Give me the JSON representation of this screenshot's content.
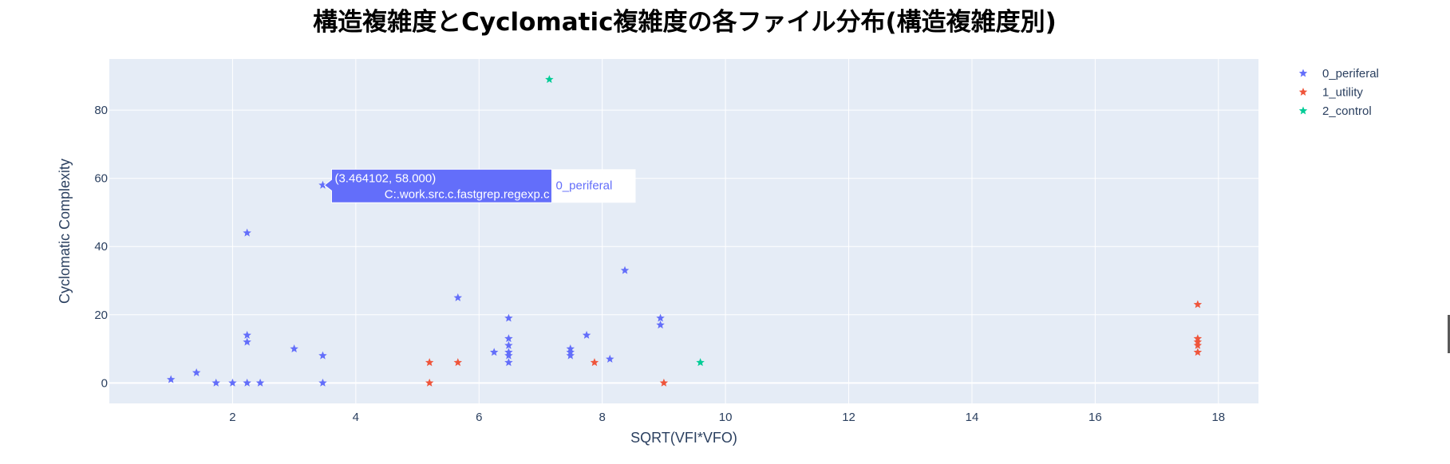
{
  "chart_data": {
    "type": "scatter",
    "marker": "star",
    "title": "構造複雑度とCyclomatic複雑度の各ファイル分布(構造複雑度別)",
    "xlabel": "SQRT(VFI*VFO)",
    "ylabel": "Cyclomatic Complexity",
    "xlim": [
      0,
      18.65
    ],
    "ylim": [
      -6,
      95
    ],
    "xticks": [
      2,
      4,
      6,
      8,
      10,
      12,
      14,
      16,
      18
    ],
    "yticks": [
      0,
      20,
      40,
      60,
      80
    ],
    "grid": true,
    "legend_position": "right",
    "series": [
      {
        "name": "0_periferal",
        "color": "#636efa",
        "points": [
          [
            1.0,
            1
          ],
          [
            1.414,
            3
          ],
          [
            1.732,
            0
          ],
          [
            2.0,
            0
          ],
          [
            2.236,
            0
          ],
          [
            2.449,
            0
          ],
          [
            2.236,
            44
          ],
          [
            2.236,
            14
          ],
          [
            2.236,
            12
          ],
          [
            3.0,
            10
          ],
          [
            3.464,
            8
          ],
          [
            3.464,
            0
          ],
          [
            3.464102,
            58
          ],
          [
            5.657,
            25
          ],
          [
            6.245,
            9
          ],
          [
            6.481,
            19
          ],
          [
            6.481,
            13
          ],
          [
            6.481,
            11
          ],
          [
            6.481,
            9
          ],
          [
            6.481,
            8
          ],
          [
            6.481,
            6
          ],
          [
            7.483,
            10
          ],
          [
            7.483,
            9
          ],
          [
            7.483,
            8
          ],
          [
            7.746,
            14
          ],
          [
            8.124,
            7
          ],
          [
            8.367,
            33
          ],
          [
            8.944,
            19
          ],
          [
            8.944,
            17
          ]
        ]
      },
      {
        "name": "1_utility",
        "color": "#ef553b",
        "points": [
          [
            5.196,
            6
          ],
          [
            5.196,
            0
          ],
          [
            5.657,
            6
          ],
          [
            7.874,
            6
          ],
          [
            9.0,
            0
          ],
          [
            17.664,
            23
          ],
          [
            17.664,
            13
          ],
          [
            17.664,
            12
          ],
          [
            17.664,
            11
          ],
          [
            17.664,
            9
          ]
        ]
      },
      {
        "name": "2_control",
        "color": "#00cc96",
        "points": [
          [
            7.141,
            89
          ],
          [
            9.592,
            6
          ]
        ]
      }
    ],
    "hover": {
      "series": "0_periferal",
      "x": 3.464102,
      "y": 58,
      "coords_text": "(3.464102, 58.000)",
      "label_text": "C:.work.src.c.fastgrep.regexp.c",
      "trace_name": "0_periferal"
    }
  }
}
